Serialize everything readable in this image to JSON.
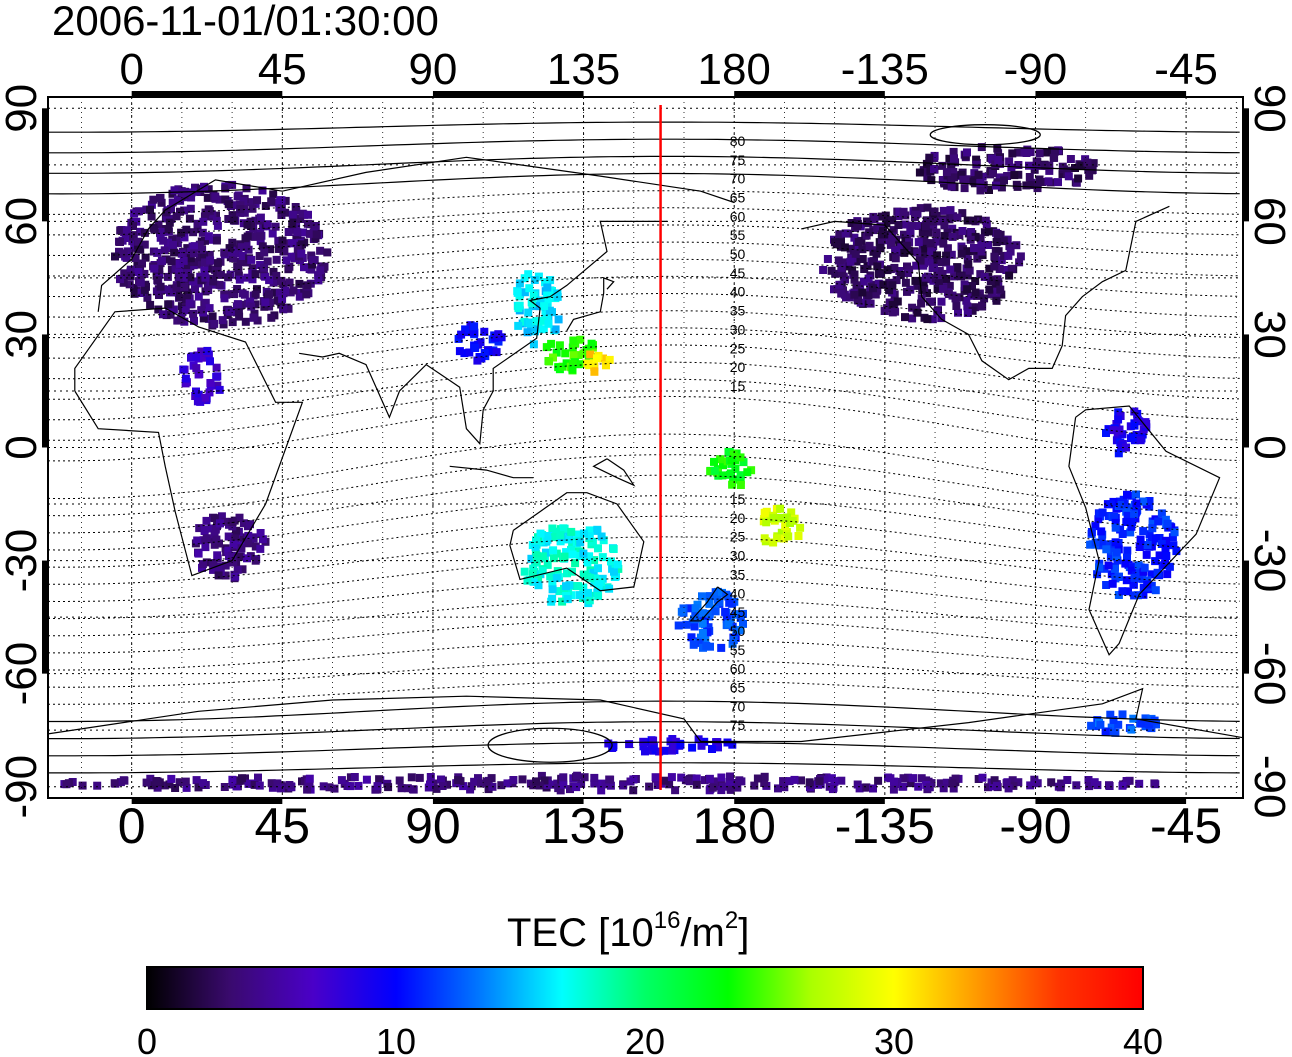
{
  "title": "2006-11-01/01:30:00",
  "map": {
    "lon_ticks_top": [
      "0",
      "45",
      "90",
      "135",
      "180",
      "-135",
      "-90",
      "-45"
    ],
    "lon_ticks_bottom": [
      "0",
      "45",
      "90",
      "135",
      "180",
      "-135",
      "-90",
      "-45"
    ],
    "lat_ticks_left": [
      "90",
      "60",
      "30",
      "0",
      "-30",
      "-60",
      "-90"
    ],
    "lat_ticks_right": [
      "90",
      "60",
      "30",
      "0",
      "-30",
      "-60",
      "-90"
    ],
    "lon_values": [
      0,
      45,
      90,
      135,
      180,
      225,
      270,
      315
    ],
    "lat_values": [
      90,
      60,
      30,
      0,
      -30,
      -60,
      -90
    ],
    "lon_min": -25,
    "lon_max": 332,
    "lat_min": -93,
    "lat_max": 93,
    "red_meridian_lon": 158,
    "contour_labels_north": [
      "80",
      "75",
      "70",
      "65",
      "60",
      "55",
      "50",
      "45",
      "40",
      "35",
      "30",
      "25",
      "20",
      "15"
    ],
    "contour_labels_south": [
      "15",
      "20",
      "25",
      "30",
      "35",
      "40",
      "45",
      "50",
      "55",
      "60",
      "65",
      "70",
      "75"
    ],
    "contour_label_lats_north": [
      80,
      75,
      70,
      65,
      60,
      55,
      50,
      45,
      40,
      35,
      30,
      25,
      20,
      15
    ],
    "contour_label_lats_south": [
      -15,
      -20,
      -25,
      -30,
      -35,
      -40,
      -45,
      -50,
      -55,
      -60,
      -65,
      -70,
      -75
    ],
    "colors": {
      "frame": "#000000",
      "grid": "#000000",
      "red_line": "#ff0000"
    }
  },
  "colorbar": {
    "label_main": "TEC  [10",
    "label_sup1": "16",
    "label_mid": "/m",
    "label_sup2": "2",
    "label_end": "]",
    "ticks": [
      "0",
      "10",
      "20",
      "30",
      "40"
    ],
    "tick_values": [
      0,
      10,
      20,
      30,
      40
    ],
    "min": 0,
    "max": 40,
    "stops": [
      "#000000",
      "#3a0a6e",
      "#4a00c8",
      "#0000ff",
      "#0077ff",
      "#00ffff",
      "#00ff66",
      "#00ff00",
      "#aaff00",
      "#ffff00",
      "#ff9900",
      "#ff3300",
      "#ff0000"
    ]
  },
  "tec_regions": [
    {
      "lon": 25,
      "lat": 52,
      "w": 65,
      "h": 38,
      "tec": 3.5
    },
    {
      "lon": 20,
      "lat": 20,
      "w": 12,
      "h": 14,
      "tec": 7
    },
    {
      "lon": 28,
      "lat": -25,
      "w": 22,
      "h": 18,
      "tec": 4
    },
    {
      "lon": 120,
      "lat": 38,
      "w": 14,
      "h": 20,
      "tec": 16
    },
    {
      "lon": 130,
      "lat": 26,
      "w": 16,
      "h": 10,
      "tec": 24
    },
    {
      "lon": 138,
      "lat": 24,
      "w": 8,
      "h": 6,
      "tec": 31
    },
    {
      "lon": 103,
      "lat": 29,
      "w": 14,
      "h": 10,
      "tec": 10
    },
    {
      "lon": 130,
      "lat": -30,
      "w": 30,
      "h": 22,
      "tec": 17
    },
    {
      "lon": 172,
      "lat": -45,
      "w": 20,
      "h": 16,
      "tec": 12
    },
    {
      "lon": 178,
      "lat": -5,
      "w": 14,
      "h": 10,
      "tec": 23
    },
    {
      "lon": 192,
      "lat": -20,
      "w": 14,
      "h": 10,
      "tec": 28
    },
    {
      "lon": 235,
      "lat": 50,
      "w": 60,
      "h": 30,
      "tec": 3
    },
    {
      "lon": 260,
      "lat": 75,
      "w": 55,
      "h": 12,
      "tec": 3
    },
    {
      "lon": 298,
      "lat": -25,
      "w": 26,
      "h": 28,
      "tec": 11
    },
    {
      "lon": 296,
      "lat": 5,
      "w": 14,
      "h": 12,
      "tec": 9
    },
    {
      "lon": 295,
      "lat": -72,
      "w": 20,
      "h": 6,
      "tec": 12
    },
    {
      "lon": 140,
      "lat": -88,
      "w": 340,
      "h": 4,
      "tec": 4
    },
    {
      "lon": 160,
      "lat": -78,
      "w": 40,
      "h": 4,
      "tec": 9
    }
  ]
}
